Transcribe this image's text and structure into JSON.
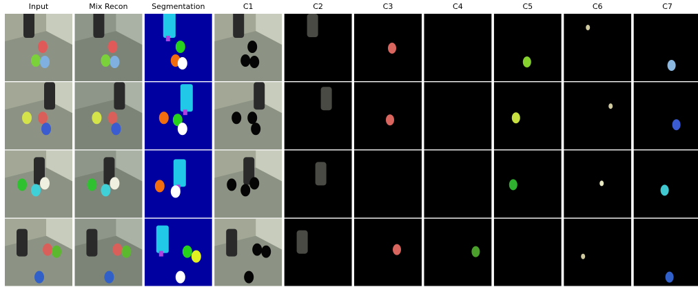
{
  "columns": [
    "Input",
    "Mix Recon",
    "Segmentation",
    "C1",
    "C2",
    "C3",
    "C4",
    "C5",
    "C6",
    "C7"
  ]
}
